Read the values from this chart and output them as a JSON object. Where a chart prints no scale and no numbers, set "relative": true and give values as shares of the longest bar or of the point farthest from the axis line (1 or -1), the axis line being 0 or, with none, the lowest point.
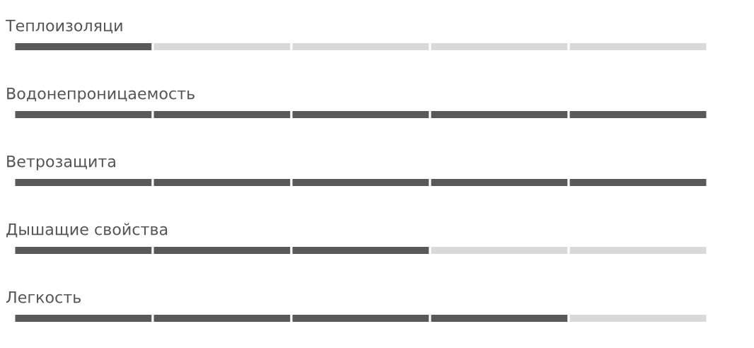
{
  "chart_data": {
    "type": "bar",
    "orientation": "horizontal",
    "stacked": true,
    "relative": true,
    "categories": [
      "Теплоизоляци",
      "Водонепроницаемость",
      "Ветрозащита",
      "Дышащие свойства",
      "Легкость"
    ],
    "series": [
      {
        "values": [
          0.2,
          0.2,
          0.2,
          0.2,
          0.2
        ],
        "colors": [
          "#595959",
          "#595959",
          "#595959",
          "#595959",
          "#595959"
        ]
      },
      {
        "values": [
          0.2,
          0.2,
          0.2,
          0.2,
          0.2
        ],
        "colors": [
          "#d9d9d9",
          "#595959",
          "#595959",
          "#595959",
          "#595959"
        ]
      },
      {
        "values": [
          0.2,
          0.2,
          0.2,
          0.2,
          0.2
        ],
        "colors": [
          "#d9d9d9",
          "#595959",
          "#595959",
          "#595959",
          "#595959"
        ]
      },
      {
        "values": [
          0.2,
          0.2,
          0.2,
          0.2,
          0.2
        ],
        "colors": [
          "#d9d9d9",
          "#595959",
          "#595959",
          "#d9d9d9",
          "#595959"
        ]
      },
      {
        "values": [
          0.2,
          0.2,
          0.2,
          0.2,
          0.2
        ],
        "colors": [
          "#d9d9d9",
          "#595959",
          "#595959",
          "#d9d9d9",
          "#d9d9d9"
        ]
      }
    ]
  }
}
